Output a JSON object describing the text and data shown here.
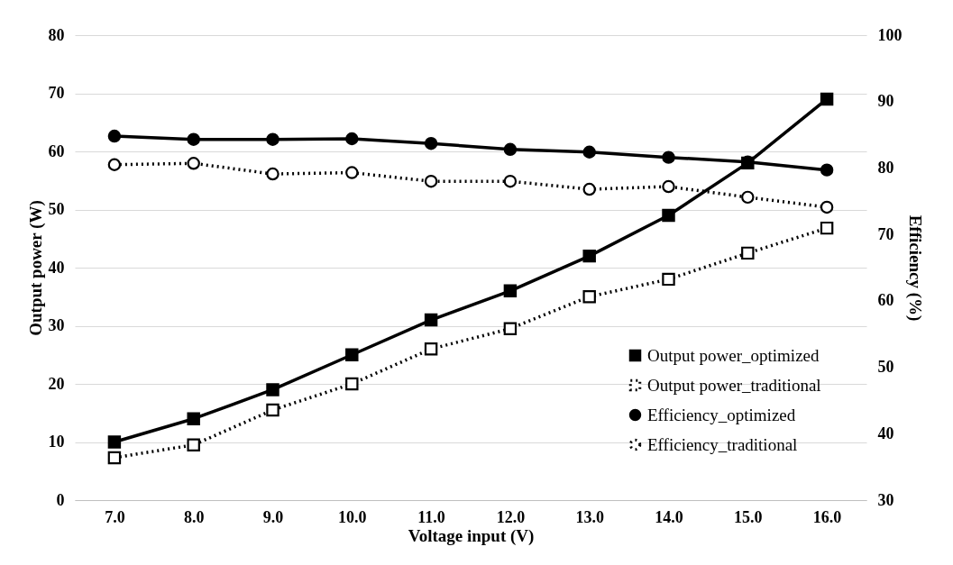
{
  "chart_data": {
    "type": "line",
    "xlabel": "Voltage input (V)",
    "ylabel": "Output power (W)",
    "y2label": "Efficiency (%)",
    "x": [
      7,
      8,
      9,
      10,
      11,
      12,
      13,
      14,
      15,
      16
    ],
    "xlim": [
      6.5,
      16.5
    ],
    "xticks": [
      {
        "value": 7,
        "label": "7.0"
      },
      {
        "value": 8,
        "label": "8.0"
      },
      {
        "value": 9,
        "label": "9.0"
      },
      {
        "value": 10,
        "label": "10.0"
      },
      {
        "value": 11,
        "label": "11.0"
      },
      {
        "value": 12,
        "label": "12.0"
      },
      {
        "value": 13,
        "label": "13.0"
      },
      {
        "value": 14,
        "label": "14.0"
      },
      {
        "value": 15,
        "label": "15.0"
      },
      {
        "value": 16,
        "label": "16.0"
      }
    ],
    "ylim": [
      0,
      80
    ],
    "yticks": [
      0,
      10,
      20,
      30,
      40,
      50,
      60,
      70,
      80
    ],
    "y2lim": [
      30,
      100
    ],
    "y2ticks": [
      30,
      40,
      50,
      60,
      70,
      80,
      90,
      100
    ],
    "grid": "y",
    "legend": "bottom right",
    "series": [
      {
        "name": "Output power_optimized",
        "color": "#000000",
        "marker": "square",
        "line_style": "solid",
        "values": [
          10,
          14,
          19,
          25,
          31,
          36,
          42,
          49,
          58,
          69
        ]
      },
      {
        "name": "Output power_traditional",
        "color": "#000000",
        "marker": "square",
        "line_style": "dotted",
        "values": [
          7.3,
          9.5,
          15.5,
          20,
          26,
          29.5,
          35,
          38,
          42.5,
          46.8
        ]
      },
      {
        "name": "Efficiency_optimized",
        "color": "#000000",
        "marker": "circle",
        "line_style": "solid",
        "axis": "y2",
        "values": [
          84.8,
          84.3,
          84.3,
          84.4,
          83.7,
          82.8,
          82.4,
          81.6,
          80.9,
          79.7
        ]
      },
      {
        "name": "Efficiency_traditional",
        "color": "#000000",
        "marker": "circle",
        "line_style": "dotted",
        "axis": "y2",
        "values": [
          80.5,
          80.7,
          79.1,
          79.3,
          78.0,
          78.0,
          76.8,
          77.2,
          75.6,
          74.1
        ]
      }
    ]
  }
}
